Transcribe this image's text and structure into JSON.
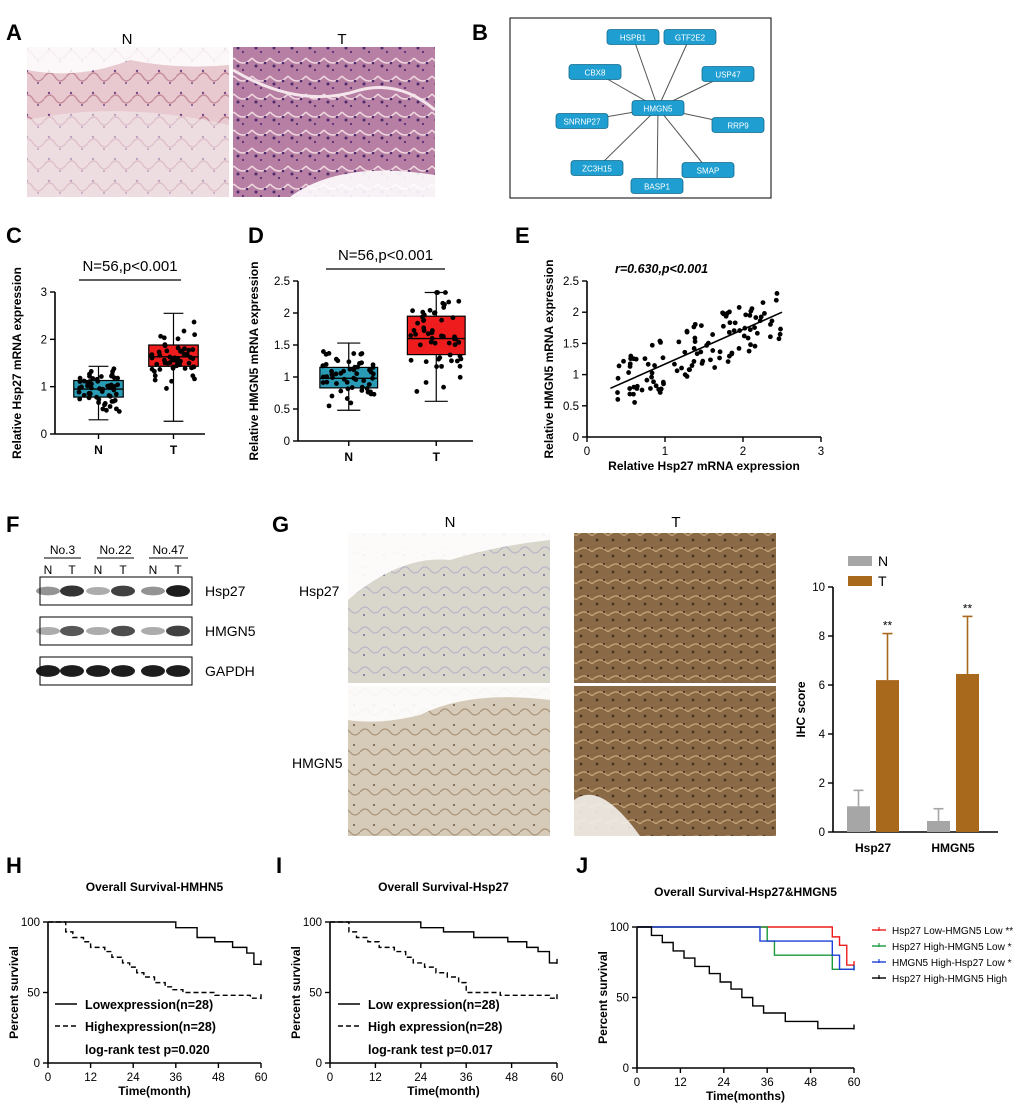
{
  "panels": {
    "A": {
      "letter": "A",
      "label_n": "N",
      "label_t": "T"
    },
    "B": {
      "letter": "B",
      "hub": "HMGN5",
      "nodes": [
        "HSPB1",
        "GTF2E2",
        "USP47",
        "RRP9",
        "SMAP",
        "BASP1",
        "ZC3H15",
        "SNRNP27",
        "CBX8"
      ]
    },
    "C": {
      "letter": "C"
    },
    "D": {
      "letter": "D"
    },
    "E": {
      "letter": "E"
    },
    "F": {
      "letter": "F",
      "samples": [
        "No.3",
        "No.22",
        "No.47"
      ],
      "lane_labels": [
        "N",
        "T",
        "N",
        "T",
        "N",
        "T"
      ],
      "bands": [
        "Hsp27",
        "HMGN5",
        "GAPDH"
      ]
    },
    "G": {
      "letter": "G",
      "col_n": "N",
      "col_t": "T",
      "row_labels": [
        "Hsp27",
        "HMGN5"
      ]
    },
    "H": {
      "letter": "H"
    },
    "I": {
      "letter": "I"
    },
    "J": {
      "letter": "J"
    }
  },
  "colors": {
    "teal": "#2a9bb5",
    "red": "#ee1c1c",
    "node": "#1f9fd1",
    "gray": "#a6a6a6",
    "brown": "#a8691d"
  },
  "chart_data": [
    {
      "id": "C",
      "type": "box",
      "title": "N=56,p<0.001",
      "xlabel": "",
      "ylabel": "Relative Hsp27 mRNA expression",
      "ylim": [
        0,
        3
      ],
      "yticks": [
        0,
        1,
        2,
        3
      ],
      "categories": [
        "N",
        "T"
      ],
      "boxes": [
        {
          "name": "N",
          "min": 0.3,
          "q1": 0.78,
          "median": 0.95,
          "q3": 1.13,
          "max": 1.43,
          "color": "#2a9bb5"
        },
        {
          "name": "T",
          "min": 0.27,
          "q1": 1.43,
          "median": 1.63,
          "q3": 1.88,
          "max": 2.55,
          "color": "#ee1c1c"
        }
      ]
    },
    {
      "id": "D",
      "type": "box",
      "title": "N=56,p<0.001",
      "xlabel": "",
      "ylabel": "Relative HMGN5 mRNA expression",
      "ylim": [
        0,
        2.5
      ],
      "yticks": [
        0,
        0.5,
        1.0,
        1.5,
        2.0,
        2.5
      ],
      "categories": [
        "N",
        "T"
      ],
      "boxes": [
        {
          "name": "N",
          "min": 0.48,
          "q1": 0.83,
          "median": 0.98,
          "q3": 1.15,
          "max": 1.53,
          "color": "#2a9bb5"
        },
        {
          "name": "T",
          "min": 0.62,
          "q1": 1.35,
          "median": 1.6,
          "q3": 1.95,
          "max": 2.32,
          "color": "#ee1c1c"
        }
      ]
    },
    {
      "id": "E",
      "type": "scatter",
      "title": "r=0.630,p<0.001",
      "xlabel": "Relative Hsp27 mRNA expression",
      "ylabel": "Relative HMGN5 mRNA expression",
      "xlim": [
        0,
        3
      ],
      "ylim": [
        0,
        2.5
      ],
      "xticks": [
        0,
        1,
        2,
        3
      ],
      "yticks": [
        0,
        0.5,
        1.0,
        1.5,
        2.0,
        2.5
      ],
      "fit_line": [
        [
          0.3,
          0.78
        ],
        [
          2.5,
          2.0
        ]
      ]
    },
    {
      "id": "G",
      "type": "bar",
      "ylabel": "IHC score",
      "ylim": [
        0,
        10
      ],
      "yticks": [
        0,
        2,
        4,
        6,
        8,
        10
      ],
      "categories": [
        "Hsp27",
        "HMGN5"
      ],
      "series": [
        {
          "name": "N",
          "values": [
            1.05,
            0.45
          ],
          "errors": [
            0.65,
            0.5
          ],
          "color": "#a6a6a6"
        },
        {
          "name": "T",
          "values": [
            6.2,
            6.45
          ],
          "errors": [
            1.9,
            2.35
          ],
          "color": "#a8691d"
        }
      ],
      "annotations": [
        "**",
        "**"
      ]
    },
    {
      "id": "H",
      "type": "line",
      "title": "Overall Survival-HMHN5",
      "xlabel": "Time(month)",
      "ylabel": "Percent survival",
      "xlim": [
        0,
        60
      ],
      "ylim": [
        0,
        100
      ],
      "xticks": [
        0,
        12,
        24,
        36,
        48,
        60
      ],
      "yticks": [
        0,
        50,
        100
      ],
      "series": [
        {
          "name": "Lowexpression(n=28)",
          "style": "solid",
          "x": [
            0,
            30,
            36,
            38,
            42,
            44,
            47,
            52,
            56,
            58,
            60
          ],
          "y": [
            100,
            100,
            96,
            96,
            89,
            89,
            86,
            82,
            78,
            70,
            70
          ]
        },
        {
          "name": "Highexpression(n=28)",
          "style": "dashed",
          "x": [
            0,
            5,
            7,
            10,
            12,
            16,
            18,
            21,
            23,
            25,
            27,
            30,
            33,
            35,
            38,
            42,
            47,
            52,
            57,
            60
          ],
          "y": [
            100,
            93,
            89,
            86,
            82,
            79,
            75,
            71,
            68,
            64,
            61,
            57,
            54,
            52,
            50,
            50,
            48,
            48,
            46,
            46
          ]
        }
      ],
      "annotation": "log-rank test p=0.020"
    },
    {
      "id": "I",
      "type": "line",
      "title": "Overall Survival-Hsp27",
      "xlabel": "Time(month)",
      "ylabel": "Percent survival",
      "xlim": [
        0,
        60
      ],
      "ylim": [
        0,
        100
      ],
      "xticks": [
        0,
        12,
        24,
        36,
        48,
        60
      ],
      "yticks": [
        0,
        50,
        100
      ],
      "series": [
        {
          "name": "Low expression(n=28)",
          "style": "solid",
          "x": [
            0,
            20,
            24,
            30,
            38,
            47,
            52,
            55,
            58,
            60
          ],
          "y": [
            100,
            100,
            96,
            93,
            89,
            86,
            82,
            79,
            71,
            71
          ]
        },
        {
          "name": "High expression(n=28)",
          "style": "dashed",
          "x": [
            0,
            5,
            7,
            10,
            13,
            17,
            20,
            22,
            25,
            28,
            31,
            34,
            36,
            40,
            45,
            52,
            58,
            60
          ],
          "y": [
            100,
            93,
            89,
            86,
            82,
            79,
            75,
            71,
            68,
            64,
            61,
            57,
            50,
            50,
            48,
            48,
            46,
            46
          ]
        }
      ],
      "annotation": "log-rank test p=0.017"
    },
    {
      "id": "J",
      "type": "line",
      "title": "Overall Survival-Hsp27&HMGN5",
      "xlabel": "Time(months)",
      "ylabel": "Percent survival",
      "xlim": [
        0,
        60
      ],
      "ylim": [
        0,
        100
      ],
      "xticks": [
        0,
        12,
        24,
        36,
        48,
        60
      ],
      "yticks": [
        0,
        50,
        100
      ],
      "series": [
        {
          "name": "Hsp27 Low-HMGN5 Low **",
          "color": "#ee1c1c",
          "x": [
            0,
            48,
            54,
            56,
            58,
            60
          ],
          "y": [
            100,
            100,
            93,
            87,
            73,
            73
          ]
        },
        {
          "name": "Hsp27 High-HMGN5 Low *",
          "color": "#1a9a3a",
          "x": [
            0,
            33,
            36,
            38,
            48,
            54,
            58,
            60
          ],
          "y": [
            100,
            100,
            90,
            80,
            80,
            70,
            70,
            70
          ]
        },
        {
          "name": "HMGN5 High-Hsp27 Low *",
          "color": "#1f3fd6",
          "x": [
            0,
            30,
            34,
            42,
            51,
            54,
            56,
            60
          ],
          "y": [
            100,
            100,
            90,
            90,
            90,
            80,
            70,
            70
          ]
        },
        {
          "name": "Hsp27 High-HMGN5 High",
          "color": "#000000",
          "x": [
            0,
            4,
            7,
            10,
            13,
            16,
            20,
            23,
            26,
            29,
            32,
            35,
            41,
            50,
            60
          ],
          "y": [
            100,
            94,
            89,
            83,
            78,
            72,
            67,
            61,
            56,
            50,
            44,
            39,
            33,
            28,
            28
          ]
        }
      ]
    }
  ]
}
